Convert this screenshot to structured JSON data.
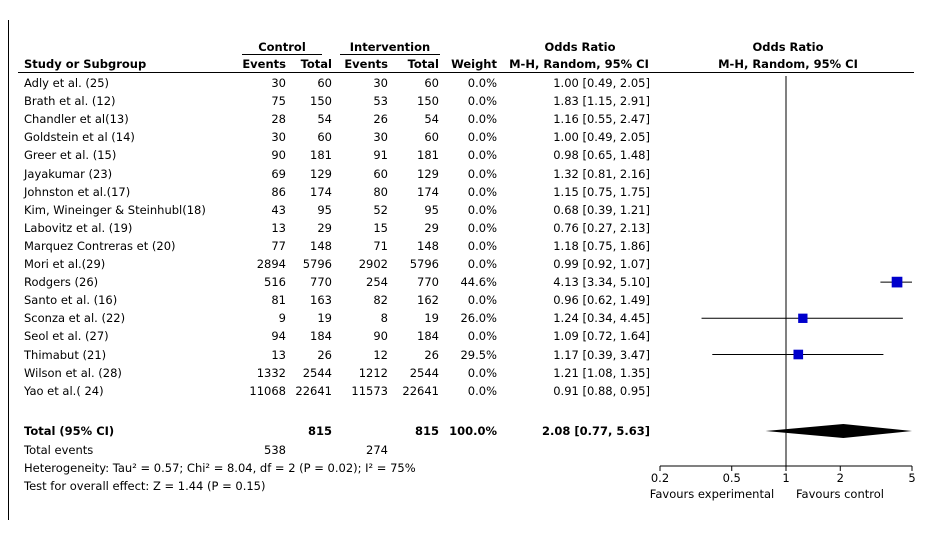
{
  "headers": {
    "control": "Control",
    "intervention": "Intervention",
    "or_left": "Odds Ratio",
    "or_right": "Odds Ratio",
    "study": "Study or Subgroup",
    "events_c": "Events",
    "total_c": "Total",
    "events_i": "Events",
    "total_i": "Total",
    "weight": "Weight",
    "method_left": "M-H, Random, 95% CI",
    "method_right": "M-H, Random, 95% CI"
  },
  "rows": [
    {
      "study": "Adly et al. (25)",
      "ec": "30",
      "tc": "60",
      "ei": "30",
      "ti": "60",
      "weight": "0.0%",
      "ci": "1.00 [0.49, 2.05]"
    },
    {
      "study": "Brath et al. (12)",
      "ec": "75",
      "tc": "150",
      "ei": "53",
      "ti": "150",
      "weight": "0.0%",
      "ci": "1.83 [1.15, 2.91]"
    },
    {
      "study": "Chandler et al(13)",
      "ec": "28",
      "tc": "54",
      "ei": "26",
      "ti": "54",
      "weight": "0.0%",
      "ci": "1.16 [0.55, 2.47]"
    },
    {
      "study": "Goldstein et al (14)",
      "ec": "30",
      "tc": "60",
      "ei": "30",
      "ti": "60",
      "weight": "0.0%",
      "ci": "1.00 [0.49, 2.05]"
    },
    {
      "study": "Greer et al. (15)",
      "ec": "90",
      "tc": "181",
      "ei": "91",
      "ti": "181",
      "weight": "0.0%",
      "ci": "0.98 [0.65, 1.48]"
    },
    {
      "study": "Jayakumar (23)",
      "ec": "69",
      "tc": "129",
      "ei": "60",
      "ti": "129",
      "weight": "0.0%",
      "ci": "1.32 [0.81, 2.16]"
    },
    {
      "study": "Johnston et al.(17)",
      "ec": "86",
      "tc": "174",
      "ei": "80",
      "ti": "174",
      "weight": "0.0%",
      "ci": "1.15 [0.75, 1.75]"
    },
    {
      "study": "Kim, Wineinger & Steinhubl(18)",
      "ec": "43",
      "tc": "95",
      "ei": "52",
      "ti": "95",
      "weight": "0.0%",
      "ci": "0.68 [0.39, 1.21]"
    },
    {
      "study": "Labovitz et al. (19)",
      "ec": "13",
      "tc": "29",
      "ei": "15",
      "ti": "29",
      "weight": "0.0%",
      "ci": "0.76 [0.27, 2.13]"
    },
    {
      "study": "Marquez Contreras et (20)",
      "ec": "77",
      "tc": "148",
      "ei": "71",
      "ti": "148",
      "weight": "0.0%",
      "ci": "1.18 [0.75, 1.86]"
    },
    {
      "study": "Mori et al.(29)",
      "ec": "2894",
      "tc": "5796",
      "ei": "2902",
      "ti": "5796",
      "weight": "0.0%",
      "ci": "0.99 [0.92, 1.07]"
    },
    {
      "study": "Rodgers (26)",
      "ec": "516",
      "tc": "770",
      "ei": "254",
      "ti": "770",
      "weight": "44.6%",
      "ci": "4.13 [3.34, 5.10]"
    },
    {
      "study": "Santo et al. (16)",
      "ec": "81",
      "tc": "163",
      "ei": "82",
      "ti": "162",
      "weight": "0.0%",
      "ci": "0.96 [0.62, 1.49]"
    },
    {
      "study": "Sconza et al. (22)",
      "ec": "9",
      "tc": "19",
      "ei": "8",
      "ti": "19",
      "weight": "26.0%",
      "ci": "1.24 [0.34, 4.45]"
    },
    {
      "study": "Seol et al. (27)",
      "ec": "94",
      "tc": "184",
      "ei": "90",
      "ti": "184",
      "weight": "0.0%",
      "ci": "1.09 [0.72, 1.64]"
    },
    {
      "study": "Thimabut (21)",
      "ec": "13",
      "tc": "26",
      "ei": "12",
      "ti": "26",
      "weight": "29.5%",
      "ci": "1.17 [0.39, 3.47]"
    },
    {
      "study": "Wilson et al. (28)",
      "ec": "1332",
      "tc": "2544",
      "ei": "1212",
      "ti": "2544",
      "weight": "0.0%",
      "ci": "1.21 [1.08, 1.35]"
    },
    {
      "study": "Yao et al.( 24)",
      "ec": "11068",
      "tc": "22641",
      "ei": "11573",
      "ti": "22641",
      "weight": "0.0%",
      "ci": "0.91 [0.88, 0.95]"
    }
  ],
  "total": {
    "label": "Total (95% CI)",
    "tc": "815",
    "ti": "815",
    "weight": "100.0%",
    "ci": "2.08 [0.77, 5.63]"
  },
  "total_events": {
    "label": "Total events",
    "ec": "538",
    "ei": "274"
  },
  "heterogeneity": "Heterogeneity: Tau² = 0.57; Chi² = 8.04, df = 2 (P = 0.02); I² = 75%",
  "overall_effect": "Test for overall effect: Z = 1.44 (P = 0.15)",
  "axis": {
    "favours_left": "Favours experimental",
    "favours_right": "Favours control"
  },
  "colors": {
    "marker": "#0000cc",
    "diamond": "#000000",
    "line": "#000000"
  },
  "chart_data": {
    "type": "scatter",
    "subtype": "forest-plot",
    "x_scale": "log",
    "xlim": [
      0.2,
      5
    ],
    "ticks": [
      0.2,
      0.5,
      1,
      2,
      5
    ],
    "tick_labels": [
      "0.2",
      "0.5",
      "1",
      "2",
      "5"
    ],
    "reference_line": 1,
    "series": [
      {
        "study": "Rodgers (26)",
        "or": 4.13,
        "lower": 3.34,
        "upper": 5.1,
        "weight": 44.6
      },
      {
        "study": "Sconza et al. (22)",
        "or": 1.24,
        "lower": 0.34,
        "upper": 4.45,
        "weight": 26.0
      },
      {
        "study": "Thimabut (21)",
        "or": 1.17,
        "lower": 0.39,
        "upper": 3.47,
        "weight": 29.5
      }
    ],
    "pooled": {
      "or": 2.08,
      "lower": 0.77,
      "upper": 5.63
    }
  }
}
